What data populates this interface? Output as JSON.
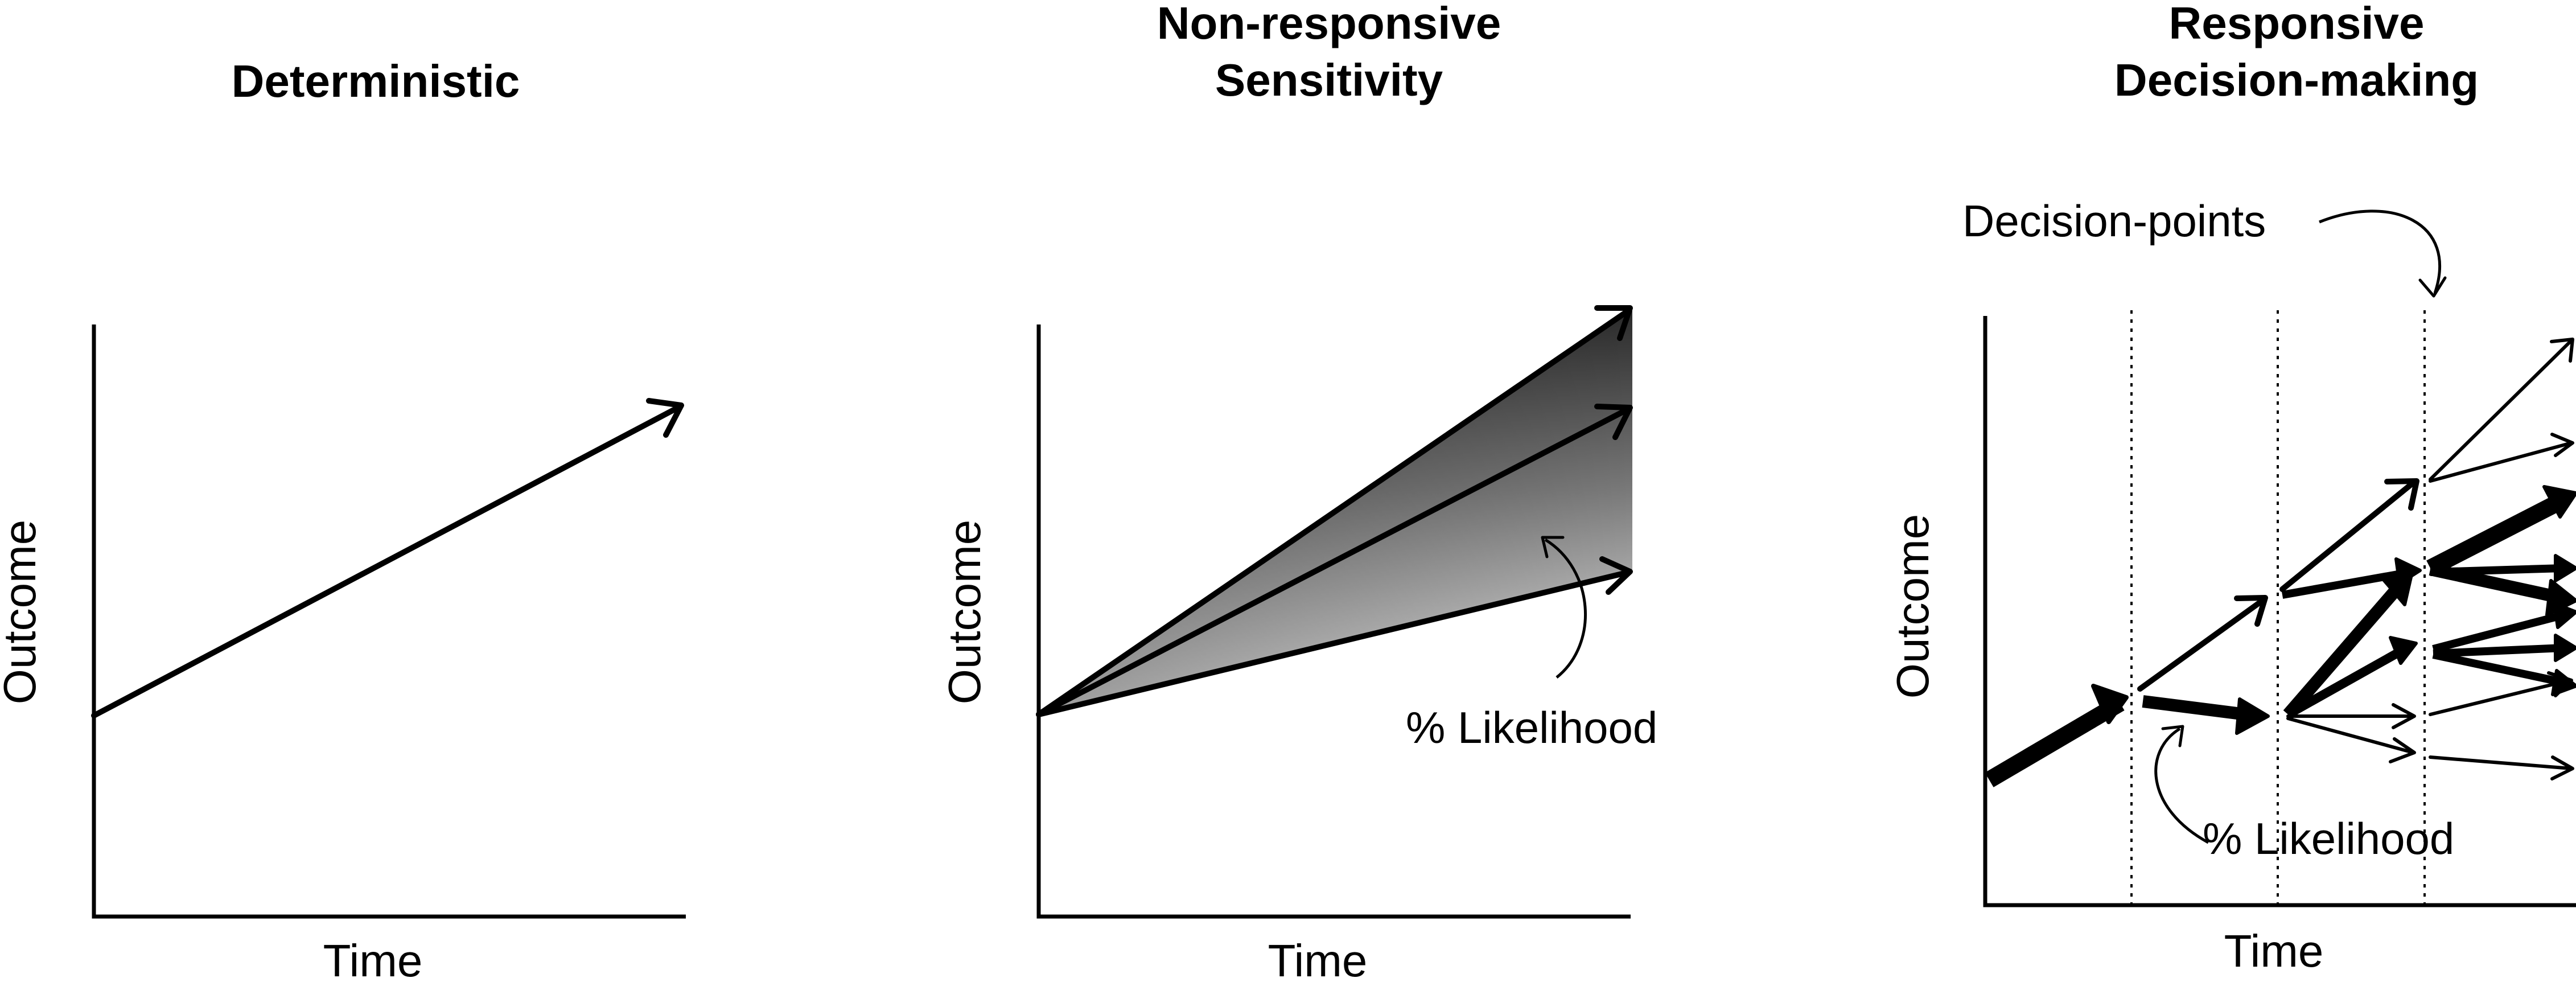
{
  "panels": [
    {
      "title_lines": [
        "Deterministic"
      ],
      "xlabel": "Time",
      "ylabel": "Outcome"
    },
    {
      "title_lines": [
        "Non-responsive",
        "Sensitivity"
      ],
      "xlabel": "Time",
      "ylabel": "Outcome",
      "annotation": "% Likelihood"
    },
    {
      "title_lines": [
        "Responsive",
        "Decision-making"
      ],
      "xlabel": "Time",
      "ylabel": "Outcome",
      "annotation_top": "Decision-points",
      "annotation_bottom": "% Likelihood"
    }
  ]
}
